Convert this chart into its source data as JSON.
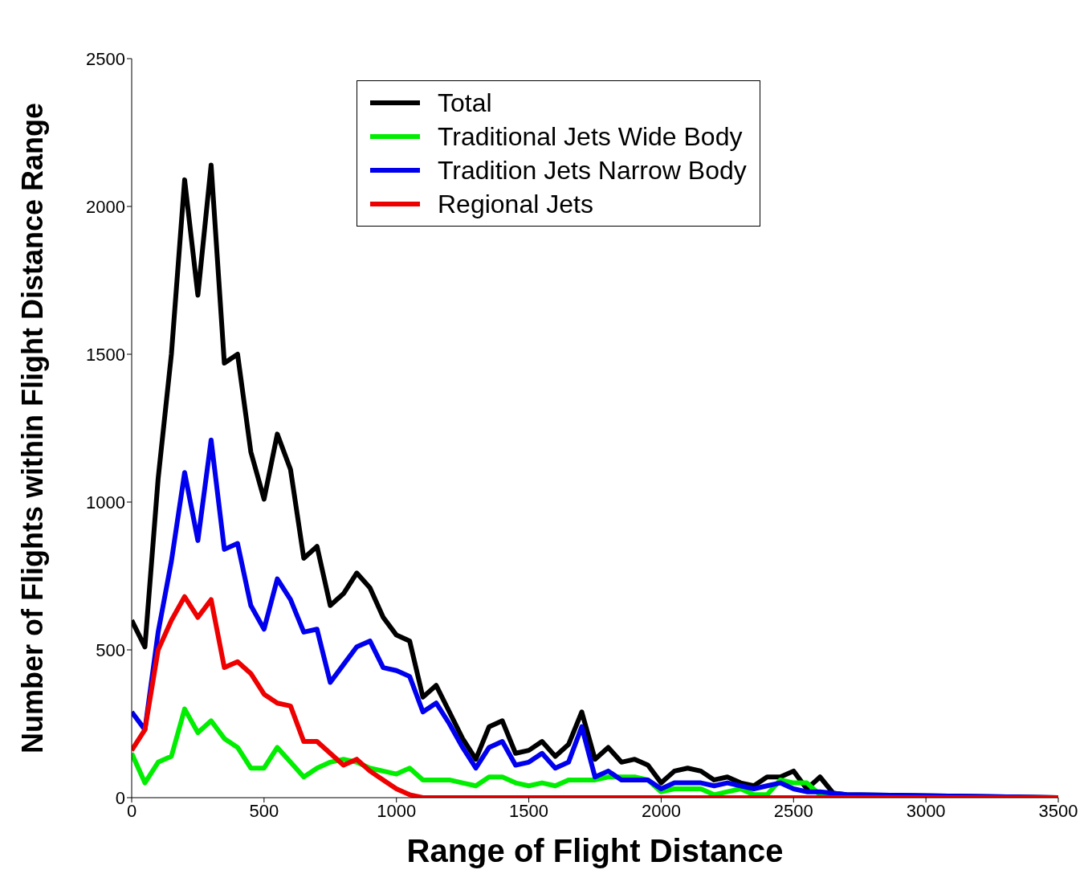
{
  "chart_data": {
    "type": "line",
    "xlabel": "Range of Flight Distance",
    "ylabel": "Number of Flights within Flight Distance Range",
    "x": [
      0,
      50,
      100,
      150,
      200,
      250,
      300,
      350,
      400,
      450,
      500,
      550,
      600,
      650,
      700,
      750,
      800,
      850,
      900,
      950,
      1000,
      1050,
      1100,
      1150,
      1200,
      1250,
      1300,
      1350,
      1400,
      1450,
      1500,
      1550,
      1600,
      1650,
      1700,
      1750,
      1800,
      1850,
      1900,
      1950,
      2000,
      2050,
      2100,
      2150,
      2200,
      2250,
      2300,
      2350,
      2400,
      2450,
      2500,
      2550,
      2600,
      2650,
      2700,
      3500
    ],
    "series": [
      {
        "name": "Total",
        "color": "#000000",
        "values": [
          600,
          510,
          1080,
          1500,
          2090,
          1700,
          2140,
          1470,
          1500,
          1170,
          1010,
          1230,
          1110,
          810,
          850,
          650,
          690,
          760,
          710,
          610,
          550,
          530,
          340,
          380,
          290,
          200,
          130,
          240,
          260,
          150,
          160,
          190,
          140,
          180,
          290,
          130,
          170,
          120,
          130,
          110,
          50,
          90,
          100,
          90,
          60,
          70,
          50,
          40,
          70,
          70,
          90,
          30,
          70,
          15,
          10,
          0
        ]
      },
      {
        "name": "Traditional Jets Wide Body",
        "color": "#00ee00",
        "values": [
          150,
          50,
          120,
          140,
          300,
          220,
          260,
          200,
          170,
          100,
          100,
          170,
          120,
          70,
          100,
          120,
          130,
          120,
          100,
          90,
          80,
          100,
          60,
          60,
          60,
          50,
          40,
          70,
          70,
          50,
          40,
          50,
          40,
          60,
          60,
          60,
          70,
          70,
          70,
          60,
          20,
          30,
          30,
          30,
          10,
          20,
          30,
          10,
          10,
          60,
          50,
          50,
          10,
          5,
          null,
          null
        ]
      },
      {
        "name": "Tradition Jets Narrow Body",
        "color": "#0000ee",
        "values": [
          290,
          230,
          560,
          800,
          1100,
          870,
          1210,
          840,
          860,
          650,
          570,
          740,
          670,
          560,
          570,
          390,
          450,
          510,
          530,
          440,
          430,
          410,
          290,
          320,
          250,
          170,
          100,
          170,
          190,
          110,
          120,
          150,
          100,
          120,
          240,
          70,
          90,
          60,
          60,
          60,
          30,
          50,
          50,
          50,
          40,
          50,
          40,
          30,
          40,
          50,
          30,
          20,
          20,
          15,
          10,
          0
        ]
      },
      {
        "name": "Regional Jets",
        "color": "#ee0000",
        "values": [
          160,
          230,
          500,
          600,
          680,
          610,
          670,
          440,
          460,
          420,
          350,
          320,
          310,
          190,
          190,
          150,
          110,
          130,
          90,
          60,
          30,
          10,
          0,
          0,
          0,
          0,
          0,
          0,
          0,
          0,
          0,
          0,
          0,
          0,
          0,
          0,
          0,
          0,
          0,
          0,
          0,
          0,
          0,
          0,
          0,
          0,
          0,
          0,
          0,
          0,
          0,
          0,
          0,
          0,
          0,
          0
        ]
      }
    ],
    "xlim": [
      0,
      3500
    ],
    "xticks": [
      0,
      500,
      1000,
      1500,
      2000,
      2500,
      3000,
      3500
    ],
    "ylim": [
      0,
      2500
    ],
    "yticks": [
      0,
      500,
      1000,
      1500,
      2000,
      2500
    ],
    "grid": false,
    "legend": "top",
    "line_style": "solid",
    "marker": "none"
  }
}
